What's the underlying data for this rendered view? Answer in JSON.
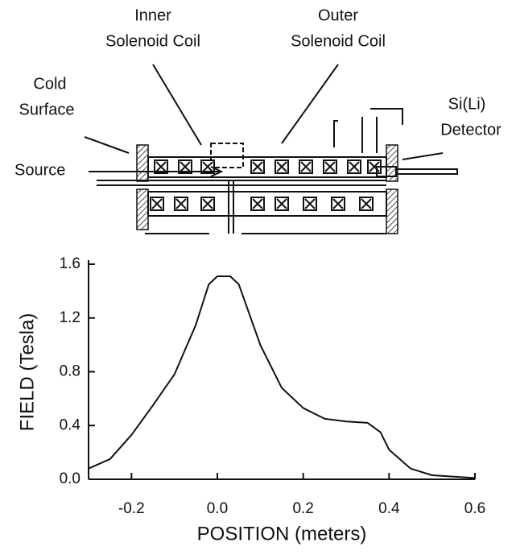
{
  "diagram": {
    "inner_coil": [
      "Inner",
      "Solenoid Coil"
    ],
    "outer_coil": [
      "Outer",
      "Solenoid Coil"
    ],
    "cold_surface": [
      "Cold",
      "Surface"
    ],
    "detector": [
      "Si(Li)",
      "Detector"
    ],
    "source": "Source"
  },
  "chart_data": {
    "type": "line",
    "xlabel": "POSITION (meters)",
    "ylabel": "FIELD (Tesla)",
    "x": [
      -0.3,
      -0.25,
      -0.2,
      -0.15,
      -0.1,
      -0.05,
      -0.02,
      0.0,
      0.03,
      0.05,
      0.1,
      0.15,
      0.2,
      0.25,
      0.3,
      0.35,
      0.38,
      0.4,
      0.45,
      0.5,
      0.6
    ],
    "series": [
      {
        "name": "FIELD",
        "color": "#111111",
        "values": [
          0.08,
          0.15,
          0.33,
          0.55,
          0.78,
          1.15,
          1.45,
          1.51,
          1.51,
          1.45,
          1.0,
          0.68,
          0.53,
          0.45,
          0.43,
          0.42,
          0.35,
          0.22,
          0.08,
          0.03,
          0.01
        ]
      }
    ],
    "xlim": [
      -0.3,
      0.6
    ],
    "xticks": [
      -0.2,
      {
        "value": 0,
        "label": "0.0"
      },
      0.2,
      0.4,
      0.6
    ],
    "ylim": [
      0,
      1.6
    ],
    "yticks": [
      {
        "value": 0,
        "label": "0.0"
      },
      0.4,
      0.8,
      1.2,
      1.6
    ]
  }
}
